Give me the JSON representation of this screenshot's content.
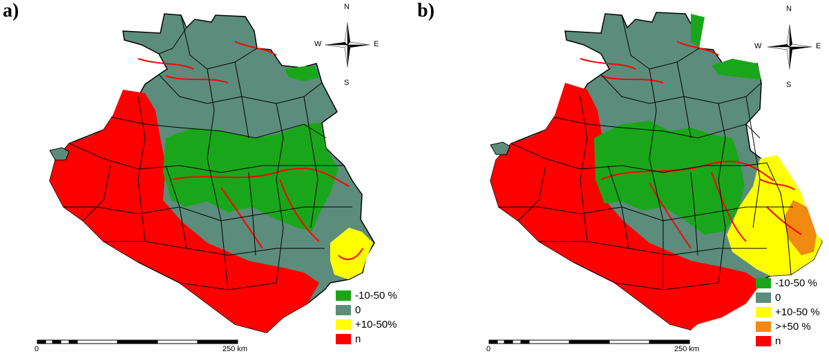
{
  "panels": [
    {
      "label": "a)",
      "compass": {
        "n": "N",
        "s": "S",
        "e": "E",
        "w": "W"
      },
      "legend": [
        {
          "text": "-10-50 %",
          "color": "#1aa61a"
        },
        {
          "text": "0",
          "color": "#5c8c7c"
        },
        {
          "text": "+10-50%",
          "color": "#ffff00"
        },
        {
          "text": "n",
          "color": "#ff0000"
        }
      ],
      "scale": {
        "start": "0",
        "end": "250 km"
      }
    },
    {
      "label": "b)",
      "compass": {
        "n": "N",
        "s": "S",
        "e": "E",
        "w": "W"
      },
      "legend": [
        {
          "text": "-10-50 %",
          "color": "#1aa61a"
        },
        {
          "text": "0",
          "color": "#5c8c7c"
        },
        {
          "text": "+10-50 %",
          "color": "#ffff00"
        },
        {
          "text": ">+50 %",
          "color": "#f08a10"
        },
        {
          "text": "n",
          "color": "#ff0000"
        }
      ],
      "scale": {
        "start": "0",
        "end": "250 km"
      }
    }
  ]
}
